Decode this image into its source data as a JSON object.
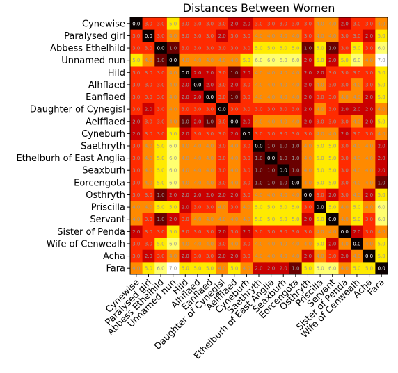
{
  "chart_data": {
    "type": "heatmap",
    "title": "Distances Between Women",
    "xlabel": "",
    "ylabel": "",
    "colormap": "hot",
    "vmin": 0,
    "vmax": 7,
    "labels": [
      "Cynewise",
      "Paralysed girl",
      "Abbess Ethelhild",
      "Unnamed nun",
      "Hild",
      "Alhflaed",
      "Eanflaed",
      "Daughter of Cynegisl",
      "Aelfflaed",
      "Cyneburh",
      "Saethryth",
      "Ethelburh of East Anglia",
      "Seaxburh",
      "Eorcengota",
      "Osthryth",
      "Priscilla",
      "Servant",
      "Sister of Penda",
      "Wife of Cenwealh",
      "Acha",
      "Fara"
    ],
    "matrix": [
      [
        0.0,
        3.0,
        3.0,
        5.0,
        3.0,
        3.0,
        3.0,
        3.0,
        2.0,
        2.0,
        3.0,
        3.0,
        3.0,
        3.0,
        3.0,
        4.0,
        4.0,
        2.0,
        3.0,
        3.0,
        4.0
      ],
      [
        3.0,
        0.0,
        3.0,
        4.0,
        3.0,
        3.0,
        3.0,
        2.0,
        3.0,
        3.0,
        4.0,
        4.0,
        4.0,
        4.0,
        3.0,
        4.0,
        4.0,
        3.0,
        3.0,
        2.0,
        5.0
      ],
      [
        3.0,
        3.0,
        0.0,
        1.0,
        3.0,
        3.0,
        3.0,
        3.0,
        3.0,
        3.0,
        5.0,
        5.0,
        5.0,
        5.0,
        1.0,
        5.0,
        1.0,
        3.0,
        5.0,
        3.0,
        6.0
      ],
      [
        5.0,
        4.0,
        1.0,
        0.0,
        4.0,
        4.0,
        4.0,
        4.0,
        4.0,
        5.0,
        6.0,
        6.0,
        6.0,
        6.0,
        2.0,
        5.0,
        2.0,
        5.0,
        6.0,
        4.0,
        7.0
      ],
      [
        3.0,
        3.0,
        3.0,
        4.0,
        0.0,
        2.0,
        2.0,
        3.0,
        1.0,
        2.0,
        4.0,
        4.0,
        4.0,
        4.0,
        2.0,
        2.0,
        3.0,
        3.0,
        3.0,
        3.0,
        5.0
      ],
      [
        3.0,
        3.0,
        3.0,
        4.0,
        2.0,
        0.0,
        2.0,
        3.0,
        2.0,
        3.0,
        4.0,
        4.0,
        4.0,
        4.0,
        2.0,
        4.0,
        3.0,
        3.0,
        4.0,
        3.0,
        5.0
      ],
      [
        3.0,
        3.0,
        3.0,
        4.0,
        2.0,
        2.0,
        0.0,
        3.0,
        1.0,
        3.0,
        4.0,
        4.0,
        4.0,
        4.0,
        2.0,
        3.0,
        3.0,
        4.0,
        4.0,
        2.0,
        5.0
      ],
      [
        3.0,
        2.0,
        3.0,
        4.0,
        3.0,
        3.0,
        3.0,
        0.0,
        3.0,
        3.0,
        3.0,
        3.0,
        3.0,
        3.0,
        2.0,
        4.0,
        3.0,
        2.0,
        2.0,
        2.0,
        4.0
      ],
      [
        2.0,
        3.0,
        3.0,
        4.0,
        1.0,
        2.0,
        1.0,
        3.0,
        0.0,
        2.0,
        4.0,
        4.0,
        4.0,
        4.0,
        2.0,
        3.0,
        3.0,
        3.0,
        4.0,
        2.0,
        5.0
      ],
      [
        2.0,
        3.0,
        3.0,
        5.0,
        2.0,
        3.0,
        3.0,
        3.0,
        2.0,
        0.0,
        3.0,
        3.0,
        3.0,
        3.0,
        3.0,
        4.0,
        4.0,
        2.0,
        3.0,
        3.0,
        4.0
      ],
      [
        3.0,
        4.0,
        5.0,
        6.0,
        4.0,
        4.0,
        4.0,
        3.0,
        4.0,
        3.0,
        0.0,
        1.0,
        1.0,
        1.0,
        4.0,
        5.0,
        5.0,
        3.0,
        4.0,
        4.0,
        2.0
      ],
      [
        3.0,
        4.0,
        5.0,
        6.0,
        4.0,
        4.0,
        4.0,
        3.0,
        4.0,
        3.0,
        1.0,
        0.0,
        1.0,
        1.0,
        4.0,
        5.0,
        5.0,
        3.0,
        4.0,
        4.0,
        2.0
      ],
      [
        3.0,
        4.0,
        5.0,
        6.0,
        4.0,
        4.0,
        4.0,
        3.0,
        4.0,
        3.0,
        1.0,
        1.0,
        0.0,
        1.0,
        4.0,
        5.0,
        5.0,
        3.0,
        4.0,
        4.0,
        2.0
      ],
      [
        3.0,
        4.0,
        5.0,
        6.0,
        4.0,
        4.0,
        4.0,
        3.0,
        4.0,
        3.0,
        1.0,
        1.0,
        1.0,
        0.0,
        4.0,
        5.0,
        5.0,
        3.0,
        4.0,
        4.0,
        1.0
      ],
      [
        3.0,
        3.0,
        1.0,
        2.0,
        2.0,
        2.0,
        2.0,
        2.0,
        2.0,
        3.0,
        4.0,
        4.0,
        4.0,
        4.0,
        0.0,
        3.0,
        2.0,
        3.0,
        4.0,
        2.0,
        5.0
      ],
      [
        4.0,
        4.0,
        5.0,
        5.0,
        2.0,
        3.0,
        3.0,
        4.0,
        3.0,
        4.0,
        5.0,
        5.0,
        5.0,
        5.0,
        3.0,
        0.0,
        5.0,
        4.0,
        5.0,
        4.0,
        6.0
      ],
      [
        4.0,
        3.0,
        1.0,
        2.0,
        3.0,
        4.0,
        4.0,
        4.0,
        4.0,
        4.0,
        5.0,
        5.0,
        5.0,
        5.0,
        2.0,
        5.0,
        0.0,
        4.0,
        5.0,
        3.0,
        6.0
      ],
      [
        2.0,
        3.0,
        3.0,
        5.0,
        3.0,
        3.0,
        3.0,
        2.0,
        3.0,
        2.0,
        3.0,
        3.0,
        3.0,
        3.0,
        3.0,
        4.0,
        4.0,
        0.0,
        2.0,
        3.0,
        4.0
      ],
      [
        3.0,
        3.0,
        5.0,
        6.0,
        4.0,
        4.0,
        4.0,
        3.0,
        4.0,
        3.0,
        4.0,
        4.0,
        4.0,
        4.0,
        4.0,
        5.0,
        2.0,
        4.0,
        0.0,
        4.0,
        5.0
      ],
      [
        3.0,
        2.0,
        3.0,
        4.0,
        2.0,
        3.0,
        3.0,
        2.0,
        2.0,
        3.0,
        4.0,
        4.0,
        4.0,
        4.0,
        2.0,
        4.0,
        3.0,
        2.0,
        4.0,
        0.0,
        5.0
      ],
      [
        4.0,
        5.0,
        6.0,
        7.0,
        5.0,
        5.0,
        5.0,
        4.0,
        5.0,
        4.0,
        2.0,
        2.0,
        2.0,
        1.0,
        5.0,
        6.0,
        6.0,
        4.0,
        5.0,
        5.0,
        0.0
      ]
    ]
  }
}
